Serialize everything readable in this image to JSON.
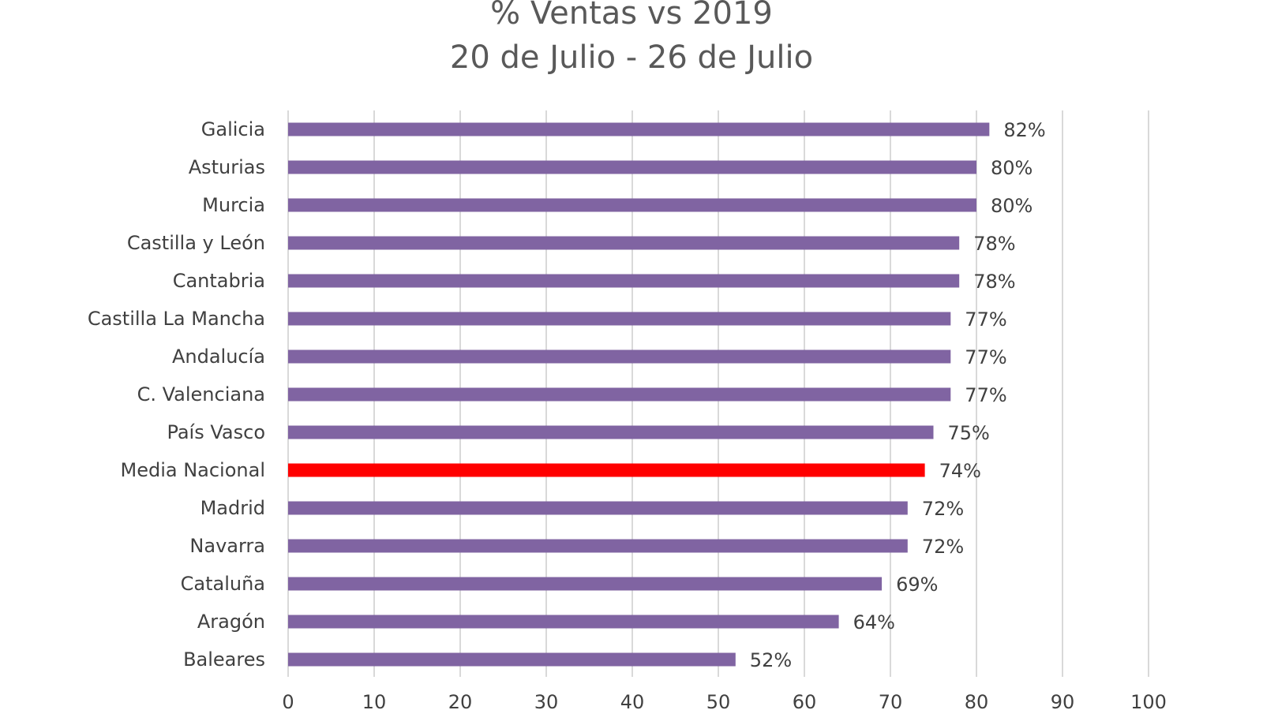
{
  "chart_data": {
    "type": "bar",
    "orientation": "horizontal",
    "title": "% Ventas vs 2019",
    "subtitle": "20 de Julio - 26 de Julio",
    "categories": [
      "Galicia",
      "Asturias",
      "Murcia",
      "Castilla y León",
      "Cantabria",
      "Castilla La Mancha",
      "Andalucía",
      "C. Valenciana",
      "País Vasco",
      "Media Nacional",
      "Madrid",
      "Navarra",
      "Cataluña",
      "Aragón",
      "Baleares"
    ],
    "values": [
      81.5,
      80,
      80,
      78,
      78,
      77,
      77,
      77,
      75,
      74,
      72,
      72,
      69,
      64,
      52
    ],
    "value_labels": [
      "82%",
      "80%",
      "80%",
      "78%",
      "78%",
      "77%",
      "77%",
      "77%",
      "75%",
      "74%",
      "72%",
      "72%",
      "69%",
      "64%",
      "52%"
    ],
    "highlight": "Media Nacional",
    "xlim": [
      0,
      100
    ],
    "xticks": [
      "0",
      "10",
      "20",
      "30",
      "40",
      "50",
      "60",
      "70",
      "80",
      "90",
      "100"
    ],
    "grid": true,
    "legend": "none",
    "colors": {
      "bar": "#8064a2",
      "highlight": "#ff0000",
      "grid": "#d9d9d9"
    }
  }
}
